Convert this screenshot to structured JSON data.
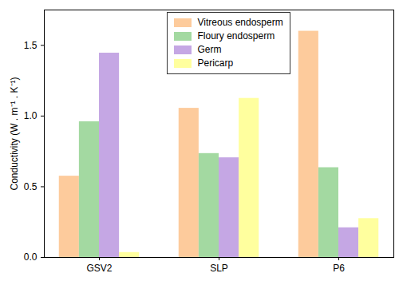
{
  "chart_data": {
    "type": "bar",
    "categories": [
      "GSV2",
      "SLP",
      "P6"
    ],
    "series": [
      {
        "name": "Vitreous endosperm",
        "color": "#fdcb9c",
        "values": [
          0.575,
          1.055,
          1.6
        ]
      },
      {
        "name": "Floury endosperm",
        "color": "#a3d9a1",
        "values": [
          0.96,
          0.735,
          0.635
        ]
      },
      {
        "name": "Germ",
        "color": "#c5a7e4",
        "values": [
          1.445,
          0.705,
          0.21
        ]
      },
      {
        "name": "Pericarp",
        "color": "#ffff9e",
        "values": [
          0.035,
          1.125,
          0.275
        ]
      }
    ],
    "ylabel": "Conductivity (W . m⁻¹ . K⁻¹)",
    "ylim": [
      0,
      1.75
    ],
    "yticks": [
      {
        "value": 0,
        "label": "0.0"
      },
      {
        "value": 0.5,
        "label": "0.5"
      },
      {
        "value": 1,
        "label": "1.0"
      },
      {
        "value": 1.5,
        "label": "1.5"
      }
    ],
    "legend": "top",
    "grid": false
  }
}
